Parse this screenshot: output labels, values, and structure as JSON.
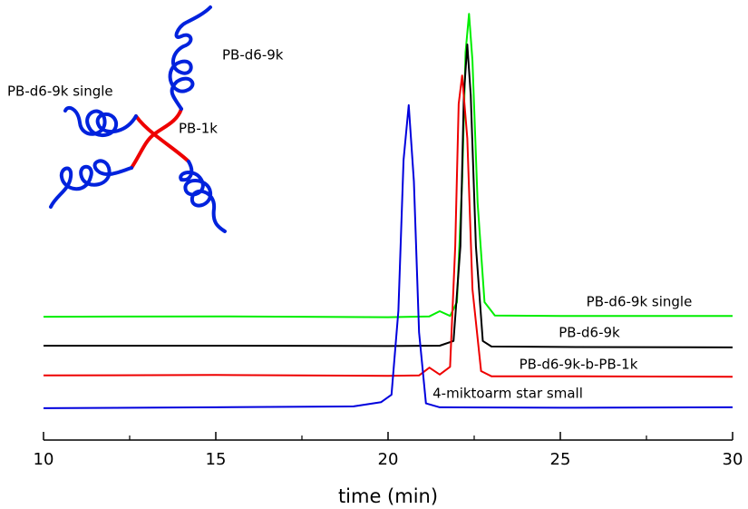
{
  "chart_data": {
    "type": "line",
    "xlabel": "time (min)",
    "xlim": [
      10,
      30
    ],
    "xticks": [
      10,
      15,
      20,
      25,
      30
    ],
    "xminorticks": [
      12.5,
      17.5,
      22.5,
      27.5
    ],
    "ylim": [
      0,
      100
    ],
    "annotations": [
      "PB-d6-9k single",
      "PB-d6-9k",
      "PB-1k"
    ],
    "series": [
      {
        "name": "PB-d6-9k single",
        "color": "#00ee00",
        "x": [
          10,
          15,
          20,
          21.2,
          21.5,
          21.8,
          22,
          22.15,
          22.25,
          22.35,
          22.45,
          22.6,
          22.8,
          23.1,
          25,
          30
        ],
        "values": [
          28.6,
          28.7,
          28.5,
          28.7,
          29.9,
          28.8,
          32,
          60,
          90,
          98.9,
          88,
          55,
          32,
          28.9,
          28.8,
          28.8
        ]
      },
      {
        "name": "PB-d6-9k",
        "color": "#000000",
        "x": [
          10,
          15,
          20,
          21.5,
          21.9,
          22.1,
          22.2,
          22.3,
          22.4,
          22.55,
          22.75,
          23,
          25,
          30
        ],
        "values": [
          21.9,
          21.9,
          21.8,
          21.9,
          23,
          45,
          80,
          91.8,
          80,
          45,
          23,
          21.7,
          21.6,
          21.5
        ]
      },
      {
        "name": "PB-d6-9k-b-PB-1k",
        "color": "#ee0000",
        "x": [
          10,
          15,
          20,
          20.9,
          21.2,
          21.5,
          21.8,
          21.95,
          22.05,
          22.15,
          22.3,
          22.45,
          22.7,
          23,
          25,
          30
        ],
        "values": [
          15,
          15.1,
          14.9,
          15,
          16.8,
          15.2,
          17,
          45,
          78,
          84.6,
          70,
          35,
          16,
          14.8,
          14.8,
          14.7
        ]
      },
      {
        "name": "4-miktoarm star small",
        "color": "#0000dd",
        "x": [
          10,
          15,
          19,
          19.8,
          20.1,
          20.3,
          20.45,
          20.6,
          20.75,
          20.9,
          21.1,
          21.5,
          25,
          30
        ],
        "values": [
          7.4,
          7.6,
          7.8,
          8.8,
          10.5,
          30,
          65,
          77.7,
          60,
          25,
          8.5,
          7.6,
          7.5,
          7.6
        ]
      }
    ]
  }
}
